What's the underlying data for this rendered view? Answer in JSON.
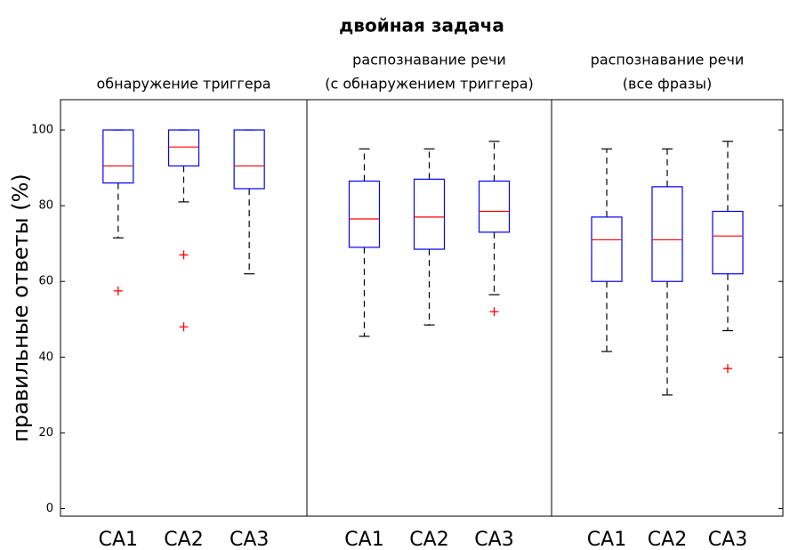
{
  "title": "двойная задача",
  "chart_data": [
    {
      "type": "box",
      "title": [
        "обнаружение триггера"
      ],
      "ylabel": "правильные ответы (%)",
      "ylim": [
        -2,
        108
      ],
      "yticks": [
        0,
        20,
        40,
        60,
        80,
        100
      ],
      "box_color": "#0000ff",
      "median_color": "#ff0000",
      "flier_color": "#ff0000",
      "whisker_color": "#000000",
      "categories": [
        "CA1",
        "CA2",
        "CA3"
      ],
      "boxes": [
        {
          "whislo": 71.5,
          "q1": 86,
          "med": 90.5,
          "q3": 100,
          "whishi": 100,
          "fliers": [
            57.5
          ]
        },
        {
          "whislo": 81,
          "q1": 90.5,
          "med": 95.5,
          "q3": 100,
          "whishi": 100,
          "fliers": [
            67,
            48
          ]
        },
        {
          "whislo": 62,
          "q1": 84.5,
          "med": 90.5,
          "q3": 100,
          "whishi": 100,
          "fliers": []
        }
      ]
    },
    {
      "type": "box",
      "title": [
        "распознавание речи",
        "(с обнаружением триггера)"
      ],
      "categories": [
        "CA1",
        "CA2",
        "CA3"
      ],
      "boxes": [
        {
          "whislo": 45.5,
          "q1": 69,
          "med": 76.5,
          "q3": 86.5,
          "whishi": 95,
          "fliers": []
        },
        {
          "whislo": 48.5,
          "q1": 68.5,
          "med": 77,
          "q3": 87,
          "whishi": 95,
          "fliers": []
        },
        {
          "whislo": 56.5,
          "q1": 73,
          "med": 78.5,
          "q3": 86.5,
          "whishi": 97,
          "fliers": [
            52
          ]
        }
      ]
    },
    {
      "type": "box",
      "title": [
        "распознавание речи",
        "(все фразы)"
      ],
      "categories": [
        "CA1",
        "CA2",
        "CA3"
      ],
      "boxes": [
        {
          "whislo": 41.5,
          "q1": 60,
          "med": 71,
          "q3": 77,
          "whishi": 95,
          "fliers": []
        },
        {
          "whislo": 30,
          "q1": 60,
          "med": 71,
          "q3": 85,
          "whishi": 95,
          "fliers": []
        },
        {
          "whislo": 47,
          "q1": 62,
          "med": 72,
          "q3": 78.5,
          "whishi": 97,
          "fliers": [
            37
          ]
        }
      ]
    }
  ]
}
